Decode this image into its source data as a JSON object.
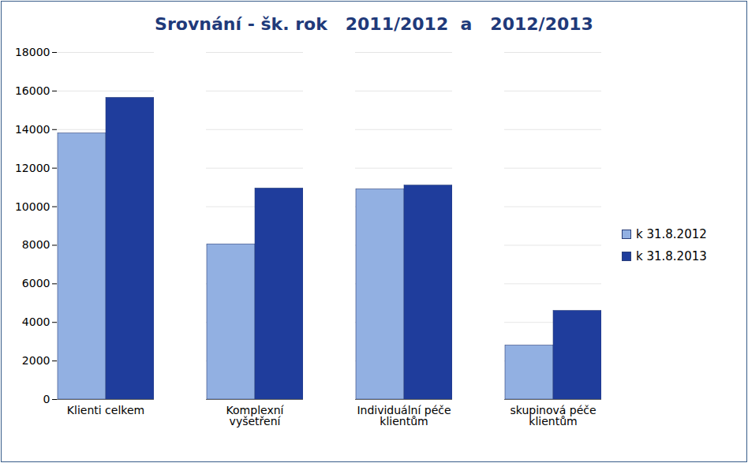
{
  "chart_data": {
    "type": "bar",
    "title": "Srovnání - šk. rok   2011/2012  a   2012/2013",
    "categories": [
      "Klienti celkem",
      "Komplexní vyšetření",
      "Individuální péče klientům",
      "skupinová péče klientům"
    ],
    "series": [
      {
        "name": "k 31.8.2012",
        "color": "#92b0e2",
        "values": [
          13800,
          8050,
          10900,
          2800
        ]
      },
      {
        "name": "k 31.8.2013",
        "color": "#1f3d9c",
        "values": [
          15650,
          10950,
          11100,
          4600
        ]
      }
    ],
    "ylim": [
      0,
      18000
    ],
    "yticks": [
      0,
      2000,
      4000,
      6000,
      8000,
      10000,
      12000,
      14000,
      16000,
      18000
    ],
    "grid": true,
    "legend": "right"
  }
}
